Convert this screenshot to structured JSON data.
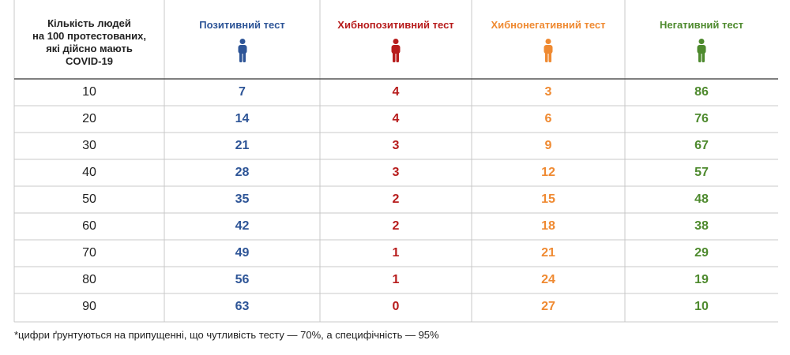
{
  "table": {
    "first_header": [
      "Кількість людей",
      "на 100 протестованих,",
      "які дійсно мають",
      "COVID-19"
    ],
    "columns": [
      {
        "title": "Позитивний тест",
        "color": "#2e5597",
        "icon": "person-icon"
      },
      {
        "title": "Хибнопозитивний тест",
        "color": "#b71c1c",
        "icon": "person-icon"
      },
      {
        "title": "Хибнонегативний тест",
        "color": "#ef8a32",
        "icon": "person-icon"
      },
      {
        "title": "Негативний тест",
        "color": "#4e8a2e",
        "icon": "person-icon"
      }
    ],
    "rows": [
      [
        "10",
        "7",
        "4",
        "3",
        "86"
      ],
      [
        "20",
        "14",
        "4",
        "6",
        "76"
      ],
      [
        "30",
        "21",
        "3",
        "9",
        "67"
      ],
      [
        "40",
        "28",
        "3",
        "12",
        "57"
      ],
      [
        "50",
        "35",
        "2",
        "15",
        "48"
      ],
      [
        "60",
        "42",
        "2",
        "18",
        "38"
      ],
      [
        "70",
        "49",
        "1",
        "21",
        "29"
      ],
      [
        "80",
        "56",
        "1",
        "24",
        "19"
      ],
      [
        "90",
        "63",
        "0",
        "27",
        "10"
      ]
    ]
  },
  "footnote": "*цифри ґрунтуються на припущенні, що чутливість тесту — 70%, а специфічність — 95%"
}
